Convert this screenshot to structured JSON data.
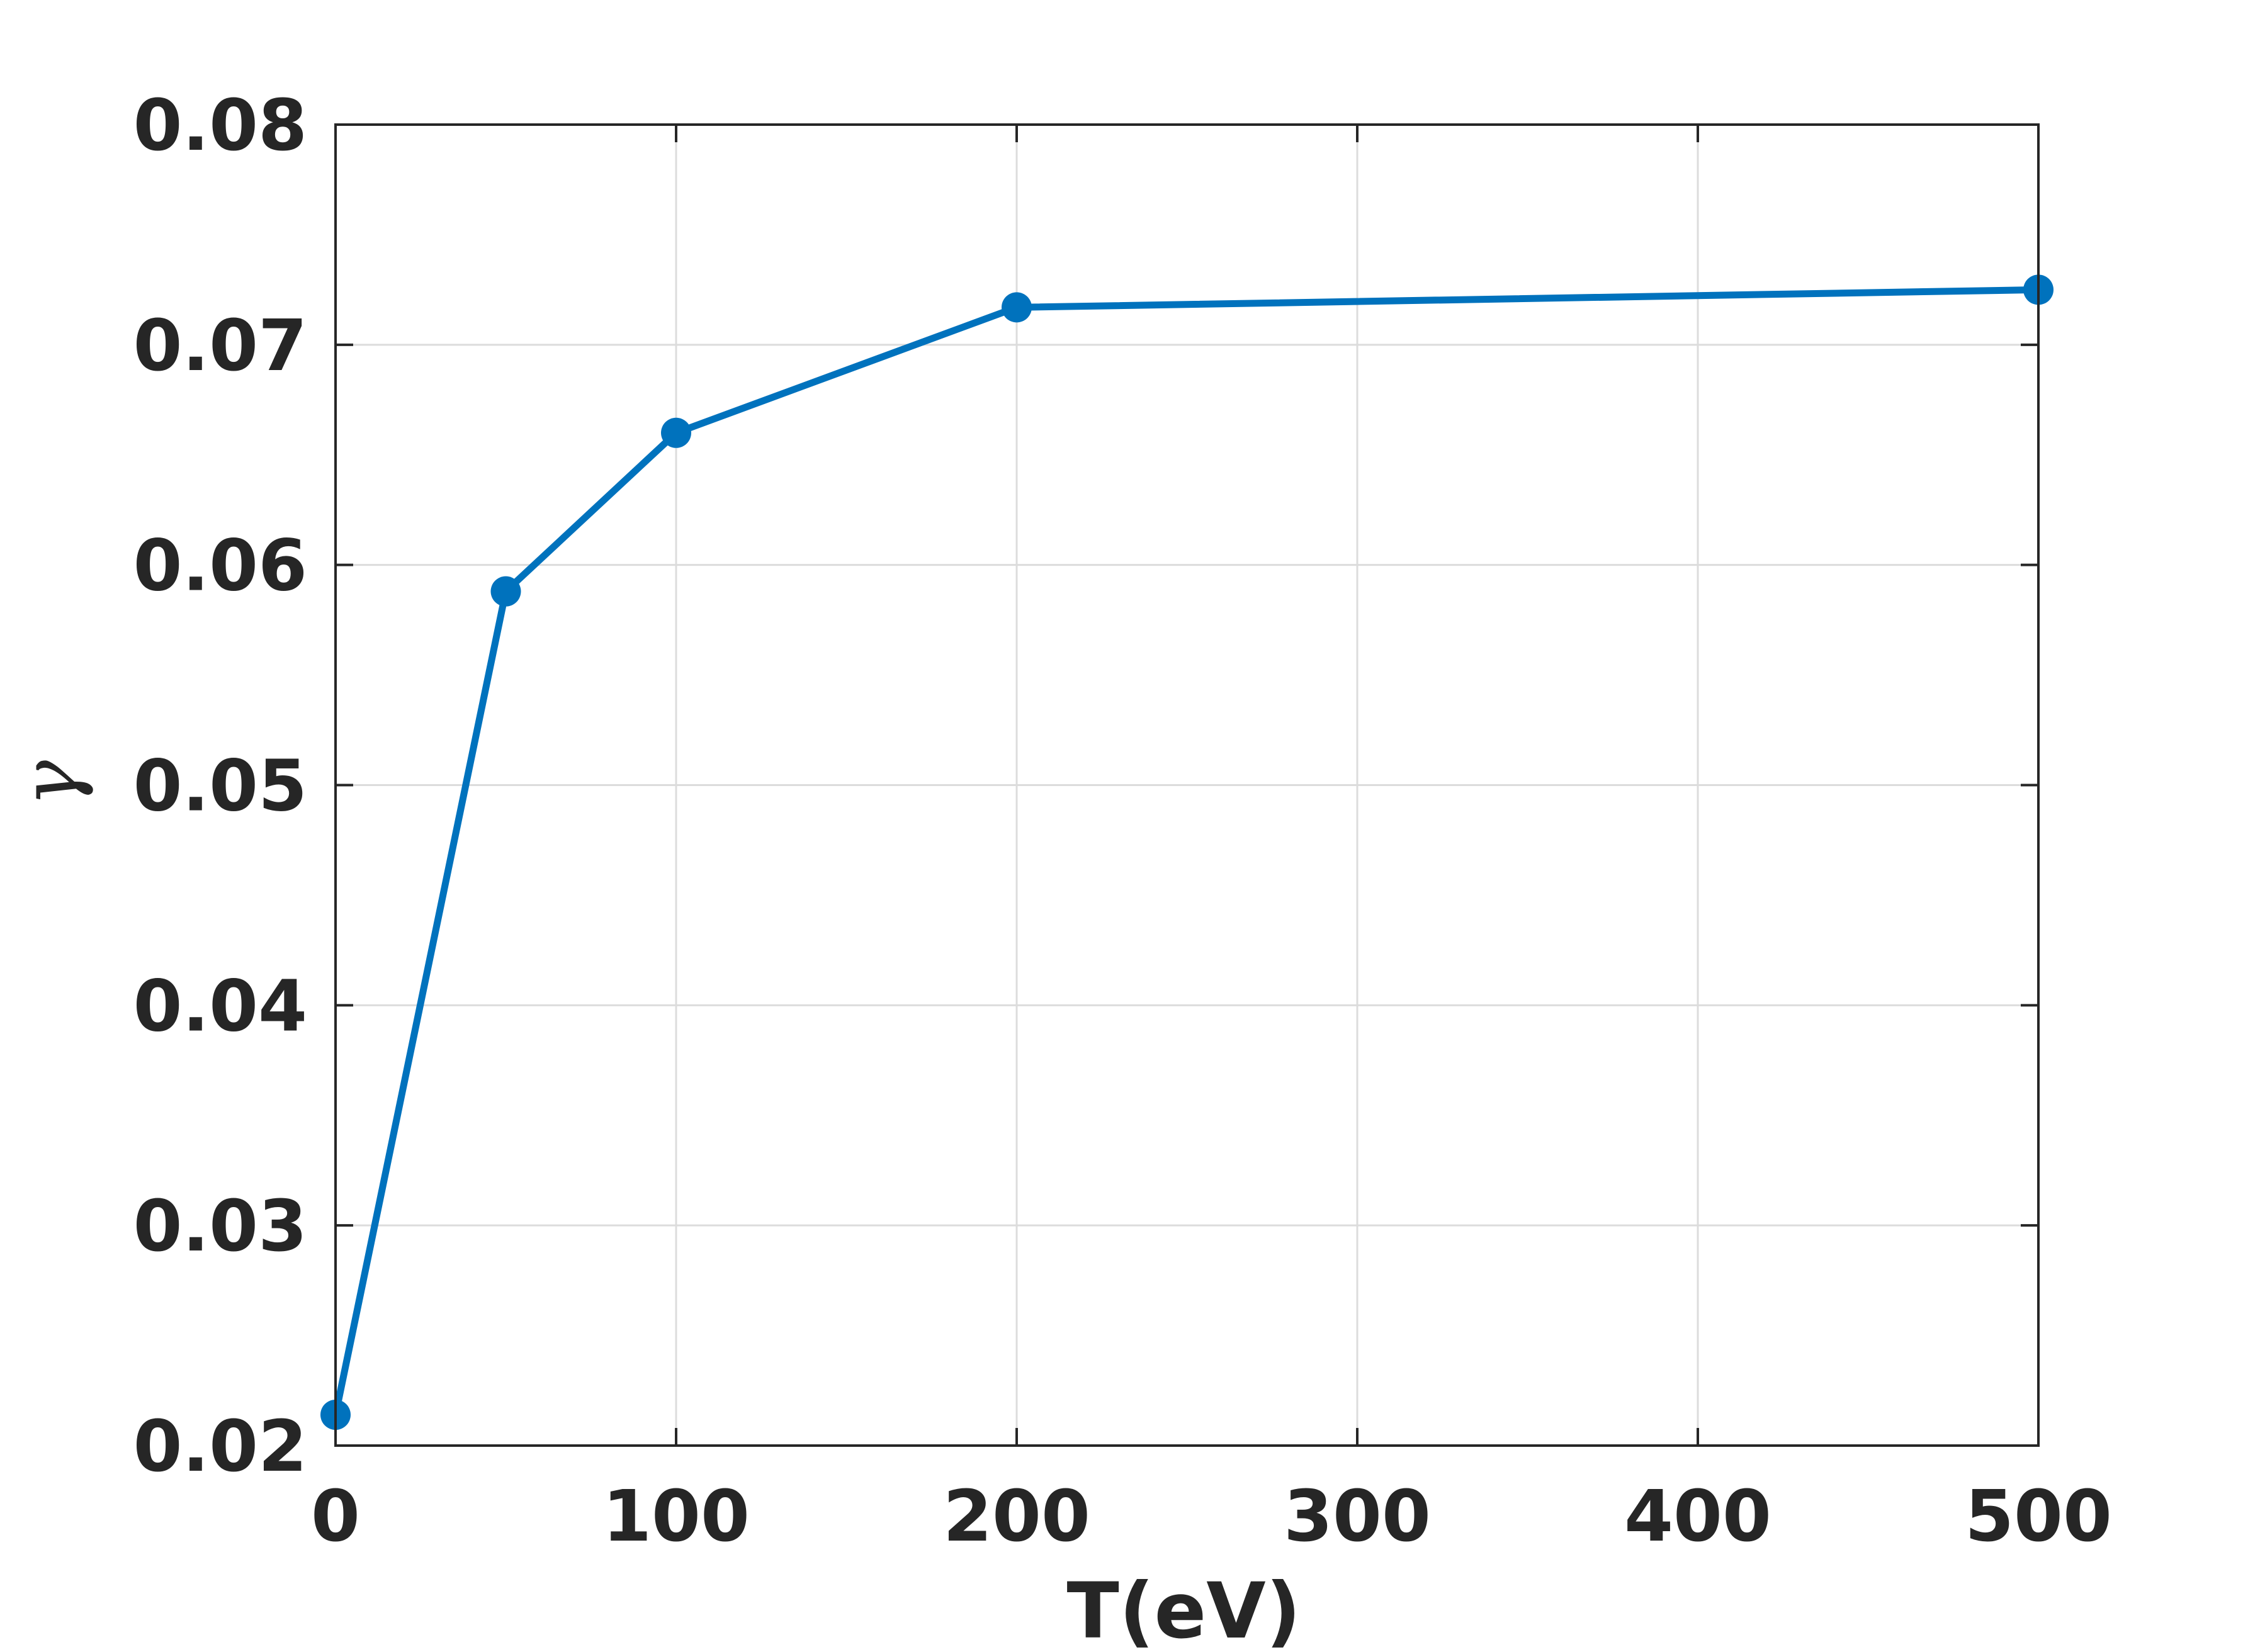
{
  "chart_data": {
    "type": "line",
    "xlabel": "T(eV)",
    "ylabel": "γ",
    "xlim": [
      0,
      500
    ],
    "ylim": [
      0.02,
      0.08
    ],
    "xticks": [
      0,
      100,
      200,
      300,
      400,
      500
    ],
    "xtick_labels": [
      "0",
      "100",
      "200",
      "300",
      "400",
      "500"
    ],
    "yticks": [
      0.02,
      0.03,
      0.04,
      0.05,
      0.06,
      0.07,
      0.08
    ],
    "ytick_labels": [
      "0.02",
      "0.03",
      "0.04",
      "0.05",
      "0.06",
      "0.07",
      "0.08"
    ],
    "grid": true,
    "series": [
      {
        "color": "#0072BD",
        "marker": "circle",
        "x": [
          0,
          50,
          100,
          200,
          500
        ],
        "y": [
          0.0214,
          0.0588,
          0.066,
          0.0717,
          0.0725
        ]
      }
    ]
  }
}
